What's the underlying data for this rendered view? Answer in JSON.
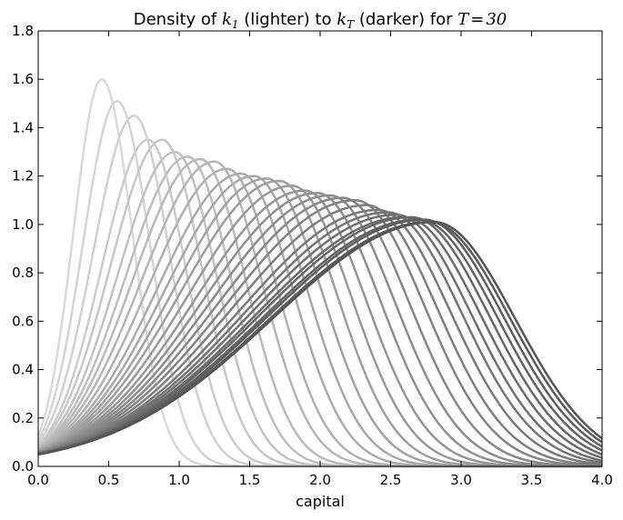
{
  "chart_data": {
    "type": "line",
    "title": {
      "prefix": "Density of ",
      "k1_base": "k",
      "k1_sub": "1",
      "middle": " (lighter) to ",
      "kT_base": "k",
      "kT_sub": "T",
      "suffix": " (darker) for ",
      "T_var": "T",
      "equals": "=",
      "T_value": "30"
    },
    "xlabel": "capital",
    "ylabel": "",
    "xlim": [
      0.0,
      4.0
    ],
    "ylim": [
      0.0,
      1.8
    ],
    "x_ticks": [
      "0.0",
      "0.5",
      "1.0",
      "1.5",
      "2.0",
      "2.5",
      "3.0",
      "3.5",
      "4.0"
    ],
    "y_ticks": [
      "0.0",
      "0.2",
      "0.4",
      "0.6",
      "0.8",
      "1.0",
      "1.2",
      "1.4",
      "1.6",
      "1.8"
    ],
    "grid": false,
    "legend": "none",
    "color_start": "#d9d9d9",
    "color_end": "#555555",
    "series_count": 30,
    "series_peaks": [
      {
        "t": 1,
        "peak_x": 0.45,
        "peak_y": 1.6
      },
      {
        "t": 2,
        "peak_x": 0.56,
        "peak_y": 1.51
      },
      {
        "t": 3,
        "peak_x": 0.68,
        "peak_y": 1.45
      },
      {
        "t": 4,
        "peak_x": 0.78,
        "peak_y": 1.35
      },
      {
        "t": 5,
        "peak_x": 0.88,
        "peak_y": 1.35
      },
      {
        "t": 6,
        "peak_x": 0.97,
        "peak_y": 1.3
      },
      {
        "t": 7,
        "peak_x": 1.06,
        "peak_y": 1.28
      },
      {
        "t": 8,
        "peak_x": 1.15,
        "peak_y": 1.27
      },
      {
        "t": 9,
        "peak_x": 1.25,
        "peak_y": 1.26
      },
      {
        "t": 10,
        "peak_x": 1.34,
        "peak_y": 1.23
      },
      {
        "t": 11,
        "peak_x": 1.44,
        "peak_y": 1.21
      },
      {
        "t": 12,
        "peak_x": 1.53,
        "peak_y": 1.2
      },
      {
        "t": 13,
        "peak_x": 1.62,
        "peak_y": 1.19
      },
      {
        "t": 14,
        "peak_x": 1.71,
        "peak_y": 1.18
      },
      {
        "t": 15,
        "peak_x": 1.8,
        "peak_y": 1.16
      },
      {
        "t": 16,
        "peak_x": 1.89,
        "peak_y": 1.14
      },
      {
        "t": 17,
        "peak_x": 1.98,
        "peak_y": 1.13
      },
      {
        "t": 18,
        "peak_x": 2.07,
        "peak_y": 1.12
      },
      {
        "t": 19,
        "peak_x": 2.16,
        "peak_y": 1.11
      },
      {
        "t": 20,
        "peak_x": 2.25,
        "peak_y": 1.1
      },
      {
        "t": 21,
        "peak_x": 2.33,
        "peak_y": 1.08
      },
      {
        "t": 22,
        "peak_x": 2.41,
        "peak_y": 1.06
      },
      {
        "t": 23,
        "peak_x": 2.48,
        "peak_y": 1.05
      },
      {
        "t": 24,
        "peak_x": 2.54,
        "peak_y": 1.04
      },
      {
        "t": 25,
        "peak_x": 2.6,
        "peak_y": 1.03
      },
      {
        "t": 26,
        "peak_x": 2.65,
        "peak_y": 1.03
      },
      {
        "t": 27,
        "peak_x": 2.7,
        "peak_y": 1.02
      },
      {
        "t": 28,
        "peak_x": 2.74,
        "peak_y": 1.02
      },
      {
        "t": 29,
        "peak_x": 2.78,
        "peak_y": 1.01
      },
      {
        "t": 30,
        "peak_x": 2.81,
        "peak_y": 1.01
      }
    ]
  }
}
